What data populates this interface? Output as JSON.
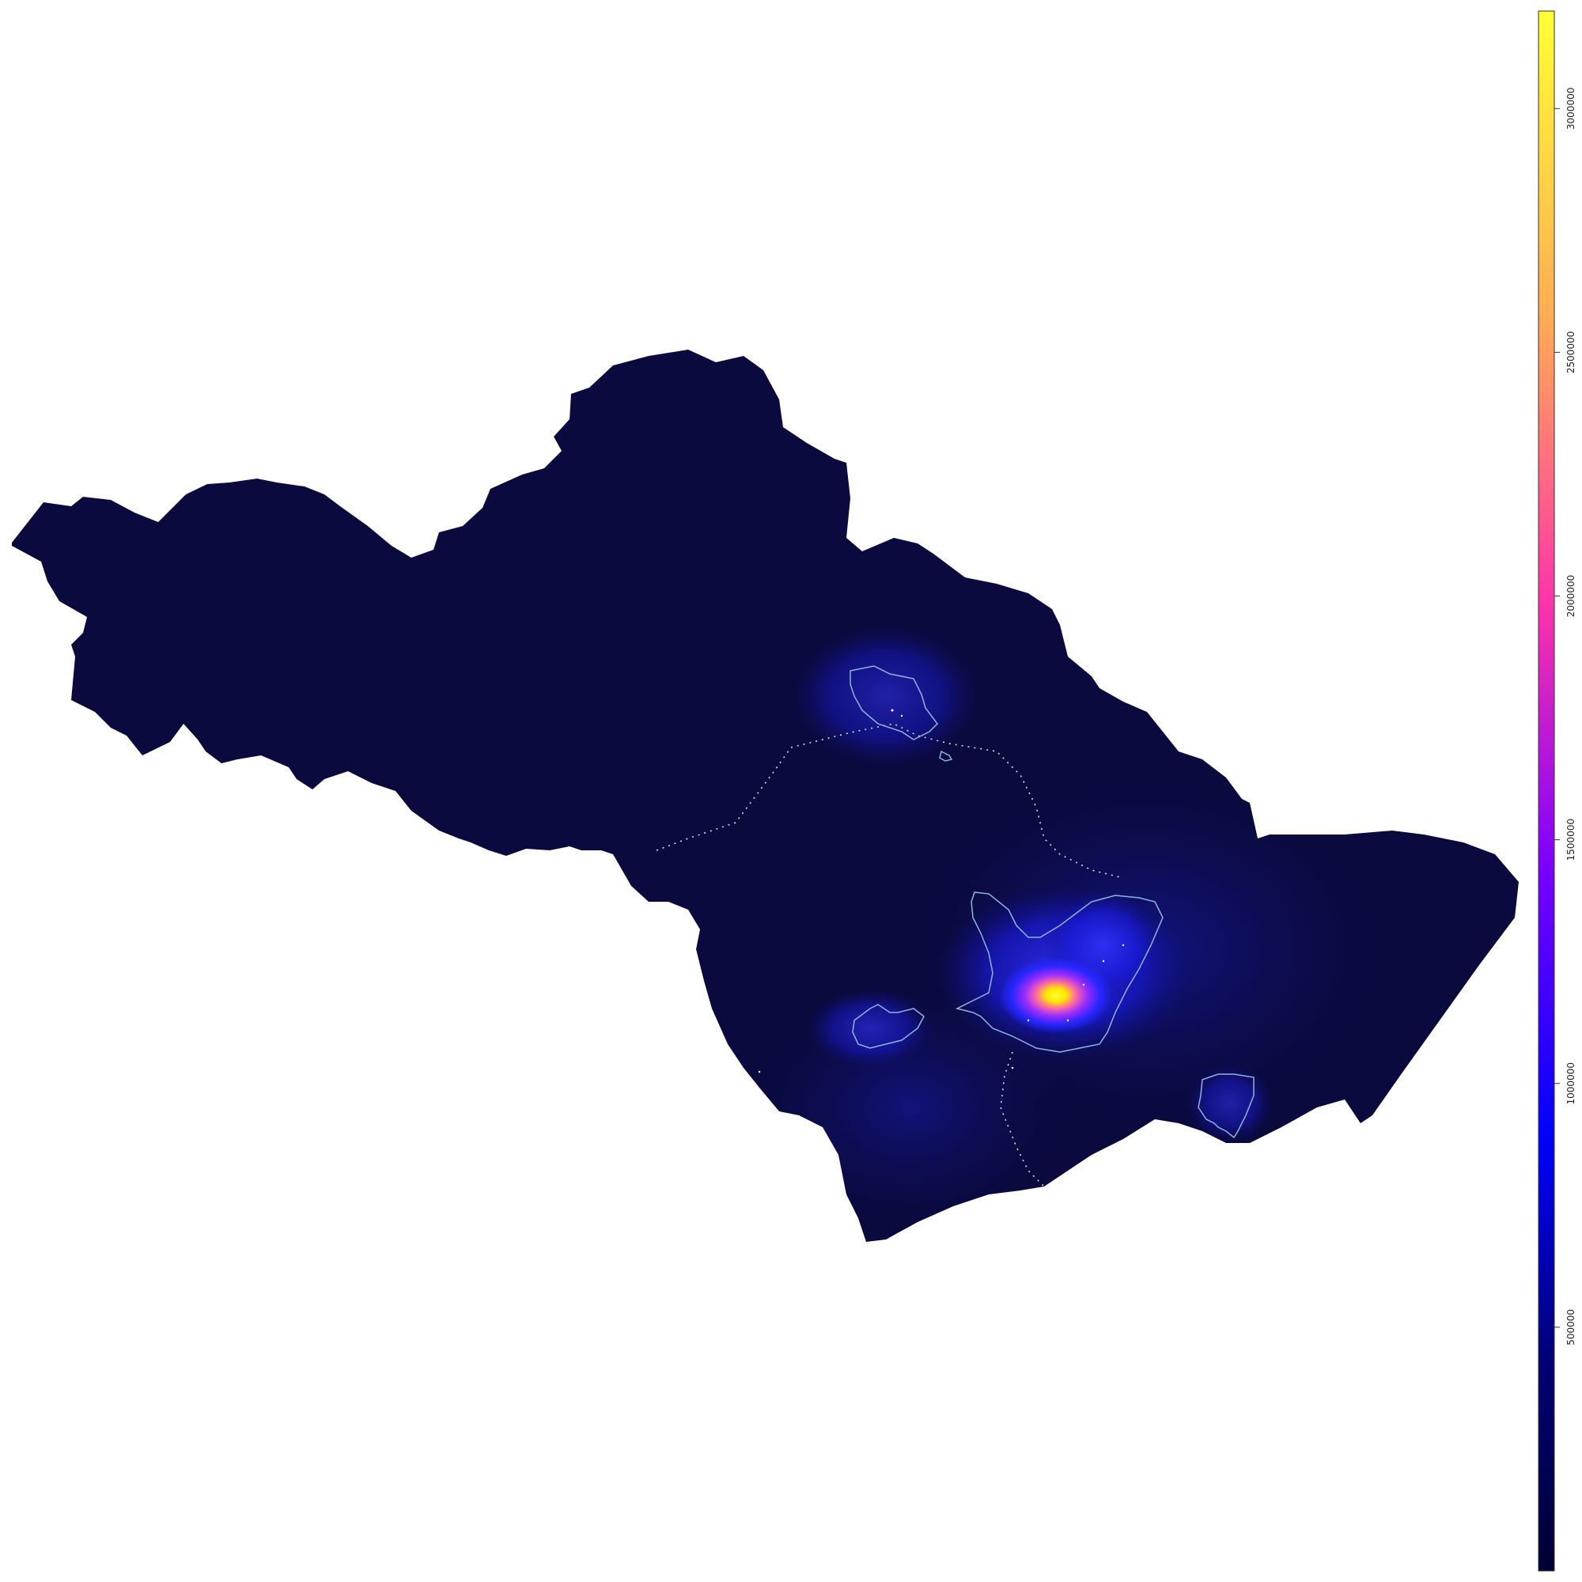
{
  "map": {
    "type": "density-heatmap",
    "background": "#ffffff",
    "region_fill_low": "#0b0b40",
    "contour_color": "#8fb4d9",
    "hotspot_colors": [
      "#ffff00",
      "#ff6aa0",
      "#9a2bff",
      "#1f1fff"
    ],
    "scatter_marks_color": "#ffffff"
  },
  "legend": {
    "orientation": "vertical",
    "placement": "right",
    "palette": [
      "#000033",
      "#0000ff",
      "#9900ff",
      "#ff33aa",
      "#ffaa55",
      "#ffff33"
    ],
    "range": [
      0,
      3200000
    ],
    "ticks": [
      {
        "value": 500000,
        "label": "500000"
      },
      {
        "value": 1000000,
        "label": "1000000"
      },
      {
        "value": 1500000,
        "label": "1500000"
      },
      {
        "value": 2000000,
        "label": "2000000"
      },
      {
        "value": 2500000,
        "label": "2500000"
      },
      {
        "value": 3000000,
        "label": "3000000"
      }
    ]
  },
  "chart_data": {
    "type": "heatmap",
    "title": "",
    "xlabel": "",
    "ylabel": "",
    "colorbar_range": [
      0,
      3200000
    ],
    "colorbar_ticks": [
      500000,
      1000000,
      1500000,
      2000000,
      2500000,
      3000000
    ]
  }
}
